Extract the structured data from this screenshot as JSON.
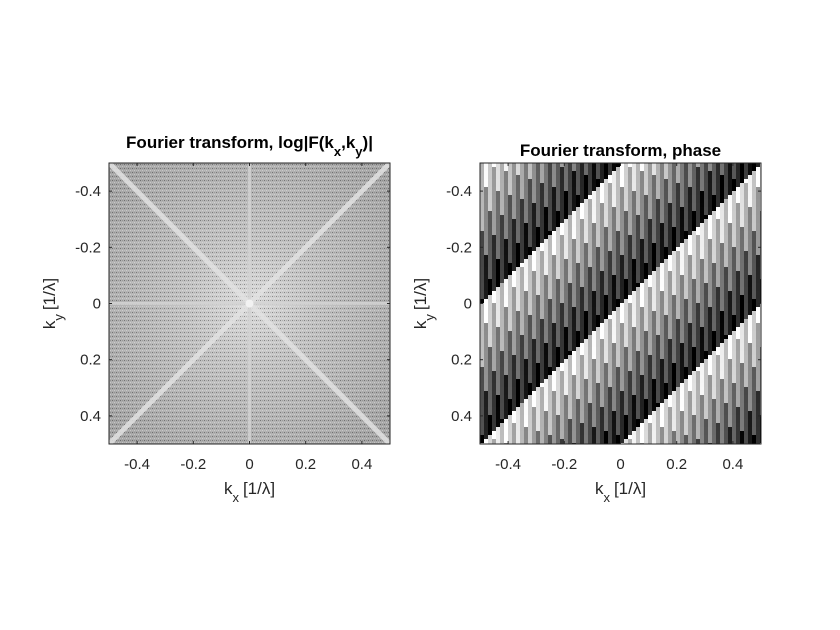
{
  "chart_data": [
    {
      "type": "heatmap",
      "title": "Fourier transform, log|F(kx,ky)|",
      "title_parts": {
        "pre": "Fourier transform, log|F(k",
        "sub1": "x",
        "mid": ",k",
        "sub2": "y",
        "post": ")|"
      },
      "xlabel": {
        "base": "k",
        "sub": "x",
        "unit": "[1/λ]"
      },
      "ylabel": {
        "base": "k",
        "sub": "y",
        "unit": "[1/λ]"
      },
      "xlim": [
        -0.5,
        0.5
      ],
      "ylim": [
        -0.5,
        0.5
      ],
      "y_reversed": true,
      "xticks": [
        -0.4,
        -0.2,
        0,
        0.2,
        0.4
      ],
      "yticks": [
        -0.4,
        -0.2,
        0,
        0.2,
        0.4
      ],
      "xtick_labels": [
        "-0.4",
        "-0.2",
        "0",
        "0.2",
        "0.4"
      ],
      "ytick_labels": [
        "-0.4",
        "-0.2",
        "0",
        "0.2",
        "0.4"
      ],
      "colormap": "gray",
      "description_features": {
        "diagonal_streaks": [
          [
            -0.5,
            -0.5,
            0.5,
            0.5
          ],
          [
            -0.5,
            0.5,
            0.5,
            -0.5
          ]
        ],
        "axis_streaks": [
          "kx=0",
          "ky=0"
        ],
        "peak": [
          0,
          0
        ]
      }
    },
    {
      "type": "heatmap",
      "title": "Fourier transform, phase",
      "xlabel": {
        "base": "k",
        "sub": "x",
        "unit": "[1/λ]"
      },
      "ylabel": {
        "base": "k",
        "sub": "y",
        "unit": "[1/λ]"
      },
      "xlim": [
        -0.5,
        0.5
      ],
      "ylim": [
        -0.5,
        0.5
      ],
      "y_reversed": true,
      "xticks": [
        -0.4,
        -0.2,
        0,
        0.2,
        0.4
      ],
      "yticks": [
        -0.4,
        -0.2,
        0,
        0.2,
        0.4
      ],
      "xtick_labels": [
        "-0.4",
        "-0.2",
        "0",
        "0.2",
        "0.4"
      ],
      "ytick_labels": [
        "-0.4",
        "-0.2",
        "0",
        "0.2",
        "0.4"
      ],
      "colormap": "gray",
      "phase_pattern": {
        "wrap_lines_slope": 1,
        "band_period": 0.5
      }
    }
  ]
}
